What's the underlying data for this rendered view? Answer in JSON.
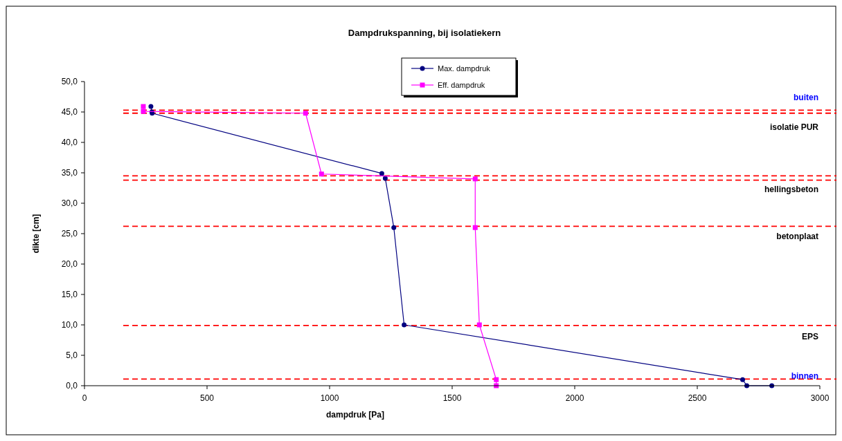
{
  "chart_data": {
    "type": "line",
    "title": "Dampdrukspanning, bij isolatiekern",
    "xlabel": "dampdruk [Pa]",
    "ylabel": "dikte [cm]",
    "xlim": [
      0,
      3000
    ],
    "xticks": [
      0,
      500,
      1000,
      1500,
      2000,
      2500,
      3000
    ],
    "ylim": [
      0,
      50
    ],
    "yticks": [
      {
        "value": 0,
        "label": "0,0"
      },
      {
        "value": 5,
        "label": "5,0"
      },
      {
        "value": 10,
        "label": "10,0"
      },
      {
        "value": 15,
        "label": "15,0"
      },
      {
        "value": 20,
        "label": "20,0"
      },
      {
        "value": 25,
        "label": "25,0"
      },
      {
        "value": 30,
        "label": "30,0"
      },
      {
        "value": 35,
        "label": "35,0"
      },
      {
        "value": 40,
        "label": "40,0"
      },
      {
        "value": 45,
        "label": "45,0"
      },
      {
        "value": 50,
        "label": "50,0"
      }
    ],
    "legend": "top",
    "grid": false,
    "series": [
      {
        "name": "Max. dampdruk",
        "color": "#000080",
        "marker": "circle",
        "x": [
          271,
          275,
          276,
          1213,
          1227,
          1262,
          1304,
          2685,
          2702,
          2804
        ],
        "values": [
          45.9,
          45.0,
          44.8,
          34.9,
          34.1,
          26.0,
          10.0,
          1.0,
          0,
          0
        ]
      },
      {
        "name": "Eff. dampdruk",
        "color": "#ff00ff",
        "marker": "square",
        "x": [
          240,
          240,
          902,
          967,
          1594,
          1594,
          1611,
          1680,
          1680
        ],
        "values": [
          45.9,
          45.1,
          44.8,
          34.8,
          34.0,
          26.0,
          10.0,
          1.0,
          0
        ]
      }
    ],
    "ref_lines": [
      {
        "axis": "y",
        "value": 45.3,
        "label": "buiten",
        "color": "#ff0000",
        "line_style": "dashed"
      },
      {
        "axis": "y",
        "value": 44.8,
        "color": "#ff0000",
        "line_style": "dashed"
      },
      {
        "axis": "y",
        "value": 34.5,
        "color": "#ff0000",
        "line_style": "dashed"
      },
      {
        "axis": "y",
        "value": 33.8,
        "color": "#ff0000",
        "line_style": "dashed"
      },
      {
        "axis": "y",
        "value": 26.2,
        "color": "#ff0000",
        "line_style": "dashed"
      },
      {
        "axis": "y",
        "value": 9.9,
        "color": "#ff0000",
        "line_style": "dashed"
      },
      {
        "axis": "y",
        "value": 1.1,
        "label": "binnen",
        "color": "#ff0000",
        "line_style": "dashed"
      }
    ],
    "annotations": [
      "isolatie PUR",
      "hellingsbeton",
      "betonplaat",
      "EPS"
    ]
  }
}
